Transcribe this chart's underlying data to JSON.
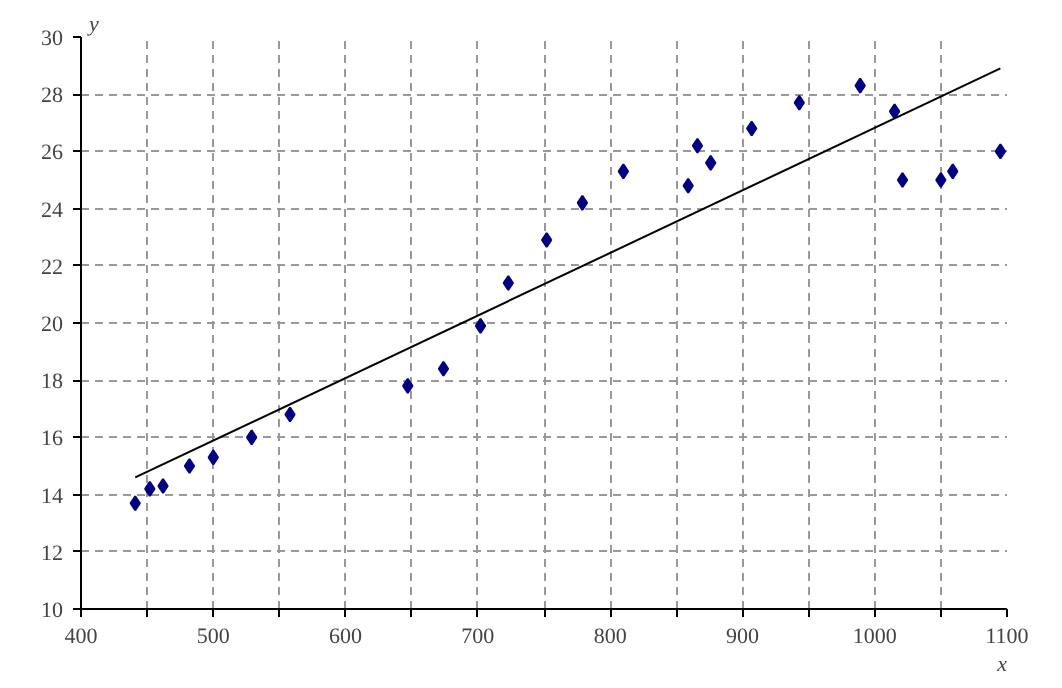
{
  "chart_data": {
    "type": "scatter",
    "xlabel": "x",
    "ylabel": "y",
    "xlim": [
      400,
      1100
    ],
    "ylim": [
      10,
      30
    ],
    "xticks": [
      400,
      {
        "value": 450,
        "label": null
      },
      500,
      {
        "value": 550,
        "label": null
      },
      600,
      {
        "value": 650,
        "label": null
      },
      700,
      {
        "value": 750,
        "label": null
      },
      800,
      {
        "value": 850,
        "label": null
      },
      900,
      {
        "value": 950,
        "label": null
      },
      1000,
      {
        "value": 1050,
        "label": null
      },
      1100
    ],
    "yticks": [
      10,
      12,
      14,
      16,
      18,
      20,
      22,
      24,
      26,
      28,
      30
    ],
    "grid": true,
    "series": [
      {
        "marker": "diamond",
        "color": "#000080",
        "x": [
          441,
          452,
          462,
          482,
          500,
          529,
          558,
          647,
          674,
          702,
          723,
          752,
          779,
          810,
          859,
          866,
          876,
          907,
          943,
          989,
          1015,
          1021,
          1050,
          1059,
          1095
        ],
        "values": [
          13.7,
          14.2,
          14.3,
          15.0,
          15.3,
          16.0,
          16.8,
          17.8,
          18.4,
          19.9,
          21.4,
          22.9,
          24.2,
          25.3,
          24.8,
          26.2,
          25.6,
          26.8,
          27.7,
          28.3,
          27.4,
          25.0,
          25.0,
          25.3,
          26.0
        ]
      },
      {
        "type": "line",
        "color": "#000000",
        "x": [
          441,
          1095
        ],
        "values": [
          14.6,
          28.9
        ]
      }
    ]
  }
}
